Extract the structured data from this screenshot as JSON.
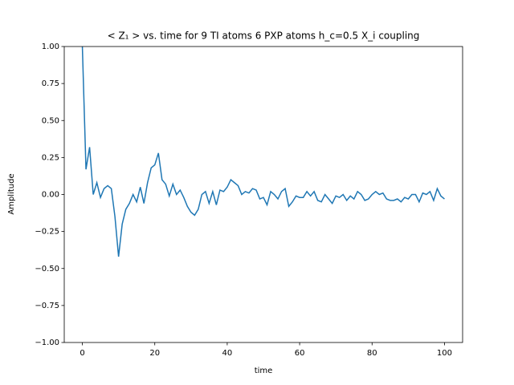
{
  "chart_data": {
    "type": "line",
    "title": "< Z₁ >  vs. time for 9 TI atoms 6 PXP atoms h_c=0.5 X_i coupling",
    "xlabel": "time",
    "ylabel": "Amplitude",
    "x": [
      0,
      1,
      2,
      3,
      4,
      5,
      6,
      7,
      8,
      9,
      10,
      11,
      12,
      13,
      14,
      15,
      16,
      17,
      18,
      19,
      20,
      21,
      22,
      23,
      24,
      25,
      26,
      27,
      28,
      29,
      30,
      31,
      32,
      33,
      34,
      35,
      36,
      37,
      38,
      39,
      40,
      41,
      42,
      43,
      44,
      45,
      46,
      47,
      48,
      49,
      50,
      51,
      52,
      53,
      54,
      55,
      56,
      57,
      58,
      59,
      60,
      61,
      62,
      63,
      64,
      65,
      66,
      67,
      68,
      69,
      70,
      71,
      72,
      73,
      74,
      75,
      76,
      77,
      78,
      79,
      80,
      81,
      82,
      83,
      84,
      85,
      86,
      87,
      88,
      89,
      90,
      91,
      92,
      93,
      94,
      95,
      96,
      97,
      98,
      99,
      100
    ],
    "series": [
      {
        "name": "<Z1>",
        "color": "#1f77b4",
        "values": [
          1.0,
          0.17,
          0.32,
          0.0,
          0.08,
          -0.02,
          0.04,
          0.06,
          0.04,
          -0.15,
          -0.42,
          -0.2,
          -0.1,
          -0.06,
          0.0,
          -0.05,
          0.05,
          -0.06,
          0.08,
          0.18,
          0.2,
          0.28,
          0.1,
          0.07,
          -0.01,
          0.07,
          0.0,
          0.03,
          -0.02,
          -0.08,
          -0.12,
          -0.14,
          -0.1,
          0.0,
          0.02,
          -0.06,
          0.02,
          -0.07,
          0.03,
          0.02,
          0.05,
          0.1,
          0.08,
          0.06,
          0.0,
          0.02,
          0.01,
          0.04,
          0.03,
          -0.03,
          -0.02,
          -0.07,
          0.02,
          0.0,
          -0.03,
          0.02,
          0.04,
          -0.08,
          -0.05,
          -0.01,
          -0.02,
          -0.02,
          0.02,
          -0.01,
          0.02,
          -0.04,
          -0.05,
          0.0,
          -0.03,
          -0.06,
          -0.01,
          -0.02,
          0.0,
          -0.04,
          -0.01,
          -0.03,
          0.02,
          0.0,
          -0.04,
          -0.03,
          0.0,
          0.02,
          0.0,
          0.01,
          -0.03,
          -0.04,
          -0.04,
          -0.03,
          -0.05,
          -0.02,
          -0.03,
          0.0,
          0.0,
          -0.05,
          0.01,
          0.0,
          0.02,
          -0.04,
          0.04,
          -0.01,
          -0.03
        ]
      }
    ],
    "xlim": [
      -5,
      105
    ],
    "ylim": [
      -1,
      1
    ],
    "xticks": [
      0,
      20,
      40,
      60,
      80,
      100
    ],
    "yticks": [
      {
        "value": -1,
        "label": "−1.00"
      },
      {
        "value": -0.75,
        "label": "−0.75"
      },
      {
        "value": -0.5,
        "label": "−0.50"
      },
      {
        "value": -0.25,
        "label": "−0.25"
      },
      {
        "value": 0,
        "label": "0.00"
      },
      {
        "value": 0.25,
        "label": "0.25"
      },
      {
        "value": 0.5,
        "label": "0.50"
      },
      {
        "value": 0.75,
        "label": "0.75"
      },
      {
        "value": 1,
        "label": "1.00"
      }
    ]
  }
}
